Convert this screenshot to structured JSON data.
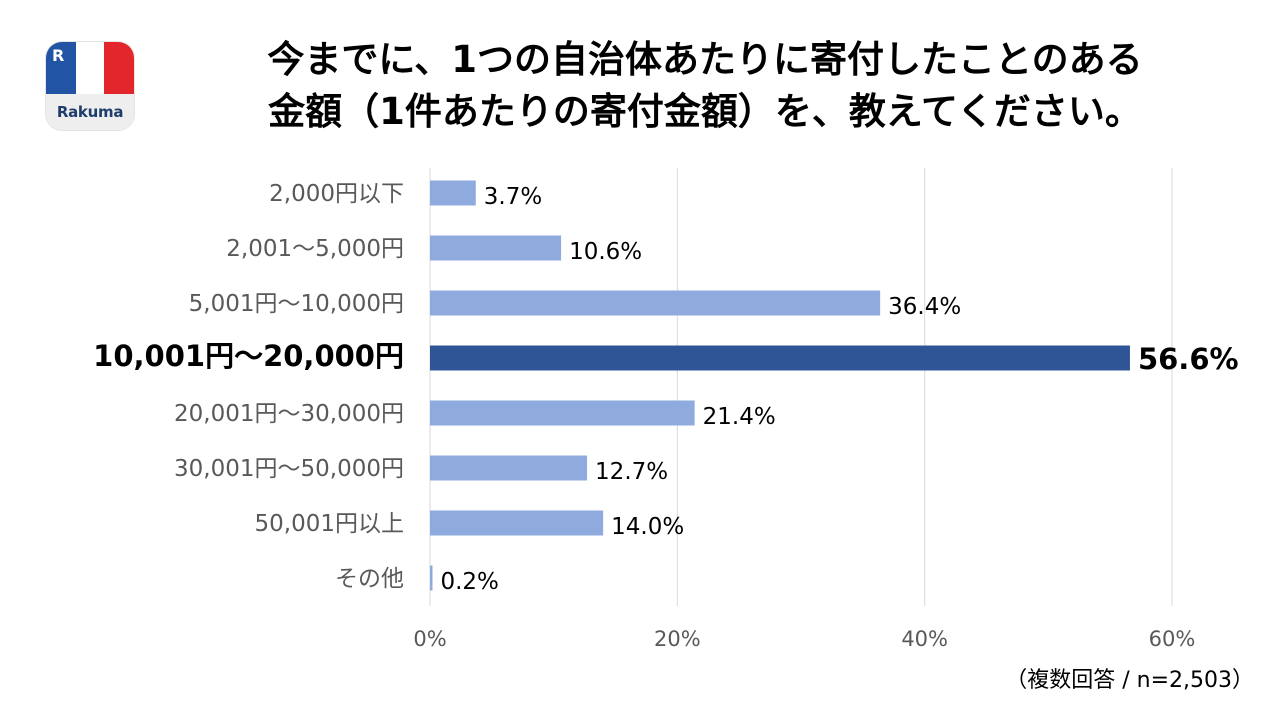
{
  "brand": {
    "name": "Rakuma",
    "mark": "R",
    "colors": {
      "blue": "#2154a4",
      "red": "#e3262b",
      "text": "#1e3d6b"
    }
  },
  "chart_data": {
    "type": "bar",
    "orientation": "horizontal",
    "title_line1": "今までに、1つの自治体あたりに寄付したことのある",
    "title_line2": "金額（1件あたりの寄付金額）を、教えてください。",
    "categories": [
      "2,000円以下",
      "2,001～5,000円",
      "5,001円～10,000円",
      "10,001円～20,000円",
      "20,001円～30,000円",
      "30,001円～50,000円",
      "50,001円以上",
      "その他"
    ],
    "values": [
      3.7,
      10.6,
      36.4,
      56.6,
      21.4,
      12.7,
      14.0,
      0.2
    ],
    "value_labels": [
      "3.7%",
      "10.6%",
      "36.4%",
      "56.6%",
      "21.4%",
      "12.7%",
      "14.0%",
      "0.2%"
    ],
    "highlight_index": 3,
    "xlim": [
      0,
      60
    ],
    "x_ticks": [
      0,
      20,
      40,
      60
    ],
    "x_tick_labels": [
      "0%",
      "20%",
      "40%",
      "60%"
    ],
    "grid": true,
    "colors": {
      "bar": "#8faadc",
      "highlight": "#2f5597",
      "grid": "#d9d9d9",
      "label": "#595959"
    },
    "note": "（複数回答 / n=2,503）"
  }
}
